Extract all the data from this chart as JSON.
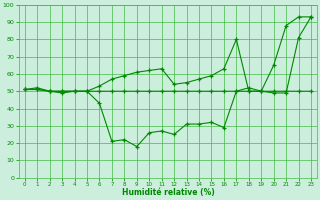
{
  "xlabel": "Humidité relative (%)",
  "bg_color": "#cceedd",
  "grid_color": "#44bb44",
  "line_color": "#008800",
  "xlim": [
    -0.5,
    23.5
  ],
  "ylim": [
    0,
    100
  ],
  "xticks": [
    0,
    1,
    2,
    3,
    4,
    5,
    6,
    7,
    8,
    9,
    10,
    11,
    12,
    13,
    14,
    15,
    16,
    17,
    18,
    19,
    20,
    21,
    22,
    23
  ],
  "yticks": [
    0,
    10,
    20,
    30,
    40,
    50,
    60,
    70,
    80,
    90,
    100
  ],
  "series": [
    [
      51,
      52,
      50,
      49,
      50,
      50,
      43,
      21,
      22,
      18,
      26,
      27,
      25,
      31,
      31,
      32,
      29,
      50,
      52,
      50,
      49,
      49,
      81,
      93
    ],
    [
      51,
      51,
      50,
      50,
      50,
      50,
      50,
      50,
      50,
      50,
      50,
      50,
      50,
      50,
      50,
      50,
      50,
      50,
      50,
      50,
      50,
      50,
      50,
      50
    ],
    [
      51,
      51,
      50,
      50,
      50,
      50,
      53,
      57,
      59,
      61,
      62,
      63,
      54,
      55,
      57,
      59,
      63,
      80,
      50,
      50,
      65,
      88,
      93,
      93
    ]
  ]
}
